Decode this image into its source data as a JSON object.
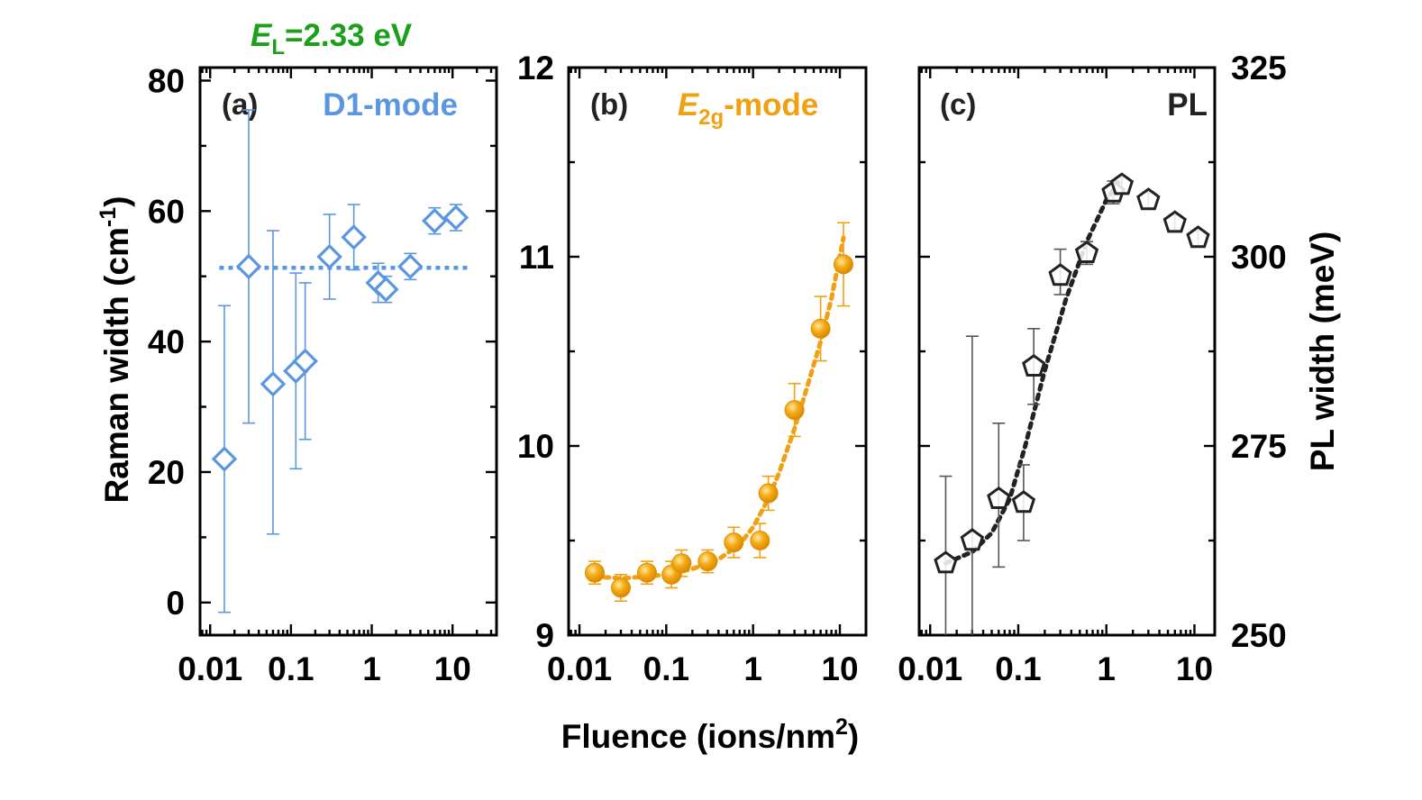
{
  "figure": {
    "energy_label": {
      "italic_symbol": "E",
      "subscript": "L",
      "rest": "=2.33 eV",
      "color": "#1aa01a"
    },
    "shared_xlabel": {
      "main": "Fluence (ions/nm",
      "superscript": "2",
      "tail": ")"
    },
    "left_ylabel": {
      "main": "Raman width  (cm",
      "superscript": "-1",
      "tail": ")"
    },
    "right_ylabel": "PL width (meV)"
  },
  "chart_data": [
    {
      "type": "scatter",
      "panel_label": "(a)",
      "title": "D1-mode",
      "color": "#5b96e0",
      "marker": "open-diamond",
      "xscale": "log",
      "xlim": [
        0.0075,
        35
      ],
      "xticks": [
        0.01,
        0.1,
        1,
        10
      ],
      "xticklabels": [
        "0.01",
        "0.1",
        "1",
        "10"
      ],
      "ylim": [
        -5,
        82
      ],
      "yticks": [
        0,
        20,
        40,
        60,
        80
      ],
      "yticklabels": [
        "0",
        "20",
        "40",
        "60",
        "80"
      ],
      "ylabel": "Raman width  (cm-1)",
      "x": [
        0.015,
        0.03,
        0.06,
        0.115,
        0.15,
        0.3,
        0.6,
        1.2,
        1.5,
        3,
        6,
        11
      ],
      "y": [
        22,
        51.5,
        33.5,
        35.5,
        37,
        53,
        56,
        49,
        48,
        51.5,
        58.5,
        59
      ],
      "err_low": [
        23.5,
        24,
        23,
        15,
        12,
        6.5,
        5,
        3,
        2,
        2,
        2,
        2
      ],
      "err_high": [
        23.5,
        24,
        23.5,
        15,
        12,
        6.5,
        5,
        3,
        2,
        2,
        2,
        2
      ],
      "fit": {
        "type": "constant",
        "value": 51.3,
        "x_range": [
          0.013,
          17
        ]
      }
    },
    {
      "type": "scatter",
      "panel_label": "(b)",
      "title": "E2g-mode",
      "title_parts": {
        "italic_symbol": "E",
        "subscript": "2g",
        "rest": "-mode"
      },
      "color": "#f0a010",
      "marker": "filled-circle",
      "xscale": "log",
      "xlim": [
        0.0075,
        20
      ],
      "xticks": [
        0.01,
        0.1,
        1,
        10
      ],
      "xticklabels": [
        "0.01",
        "0.1",
        "1",
        "10"
      ],
      "ylim": [
        9,
        12
      ],
      "yticks": [
        9,
        10,
        11,
        12
      ],
      "yticklabels": [
        "9",
        "10",
        "11",
        "12"
      ],
      "x": [
        0.015,
        0.03,
        0.06,
        0.115,
        0.15,
        0.3,
        0.6,
        1.2,
        1.5,
        3,
        6,
        11
      ],
      "y": [
        9.33,
        9.25,
        9.33,
        9.32,
        9.38,
        9.39,
        9.49,
        9.5,
        9.75,
        10.19,
        10.62,
        10.96
      ],
      "err_low": [
        0.06,
        0.07,
        0.06,
        0.07,
        0.07,
        0.06,
        0.08,
        0.09,
        0.09,
        0.14,
        0.17,
        0.22
      ],
      "err_high": [
        0.06,
        0.07,
        0.06,
        0.07,
        0.07,
        0.06,
        0.08,
        0.09,
        0.09,
        0.14,
        0.17,
        0.22
      ],
      "fit": {
        "type": "curve",
        "x": [
          0.015,
          0.03,
          0.06,
          0.1,
          0.2,
          0.4,
          0.7,
          1.0,
          1.5,
          2.0,
          3.0,
          4.0,
          6.0,
          8.0,
          11.0
        ],
        "y": [
          9.31,
          9.3,
          9.31,
          9.32,
          9.35,
          9.4,
          9.48,
          9.57,
          9.72,
          9.86,
          10.09,
          10.28,
          10.55,
          10.78,
          11.1
        ]
      }
    },
    {
      "type": "scatter",
      "panel_label": "(c)",
      "title": "PL",
      "color": "#222222",
      "marker": "open-pentagon",
      "xscale": "log",
      "xlim": [
        0.0075,
        17
      ],
      "xticks": [
        0.01,
        0.1,
        1,
        10
      ],
      "xticklabels": [
        "0.01",
        "0.1",
        "1",
        "10"
      ],
      "ylim": [
        250,
        325
      ],
      "yticks": [
        250,
        275,
        300,
        325
      ],
      "yticklabels": [
        "250",
        "275",
        "300",
        "325"
      ],
      "ylabel": "PL width (meV)",
      "x": [
        0.015,
        0.03,
        0.06,
        0.115,
        0.15,
        0.3,
        0.6,
        1.2,
        1.5,
        3,
        6,
        11
      ],
      "y": [
        259.5,
        262.5,
        268,
        267.5,
        285.5,
        297.5,
        300.5,
        308.5,
        309.5,
        307.5,
        304.5,
        302.5
      ],
      "err_low": [
        15,
        13.5,
        9,
        5,
        5,
        2.5,
        1.5,
        1.5,
        1,
        1,
        1,
        1
      ],
      "err_high": [
        11.5,
        27,
        10,
        5,
        5,
        3.5,
        1.5,
        1.5,
        1,
        1,
        1,
        1
      ],
      "fit": {
        "type": "curve",
        "x": [
          0.015,
          0.03,
          0.05,
          0.08,
          0.12,
          0.2,
          0.35,
          0.6,
          1.0,
          1.4
        ],
        "y": [
          259.5,
          261,
          263.5,
          268,
          275,
          285,
          294.5,
          302,
          307.5,
          310
        ]
      }
    }
  ]
}
